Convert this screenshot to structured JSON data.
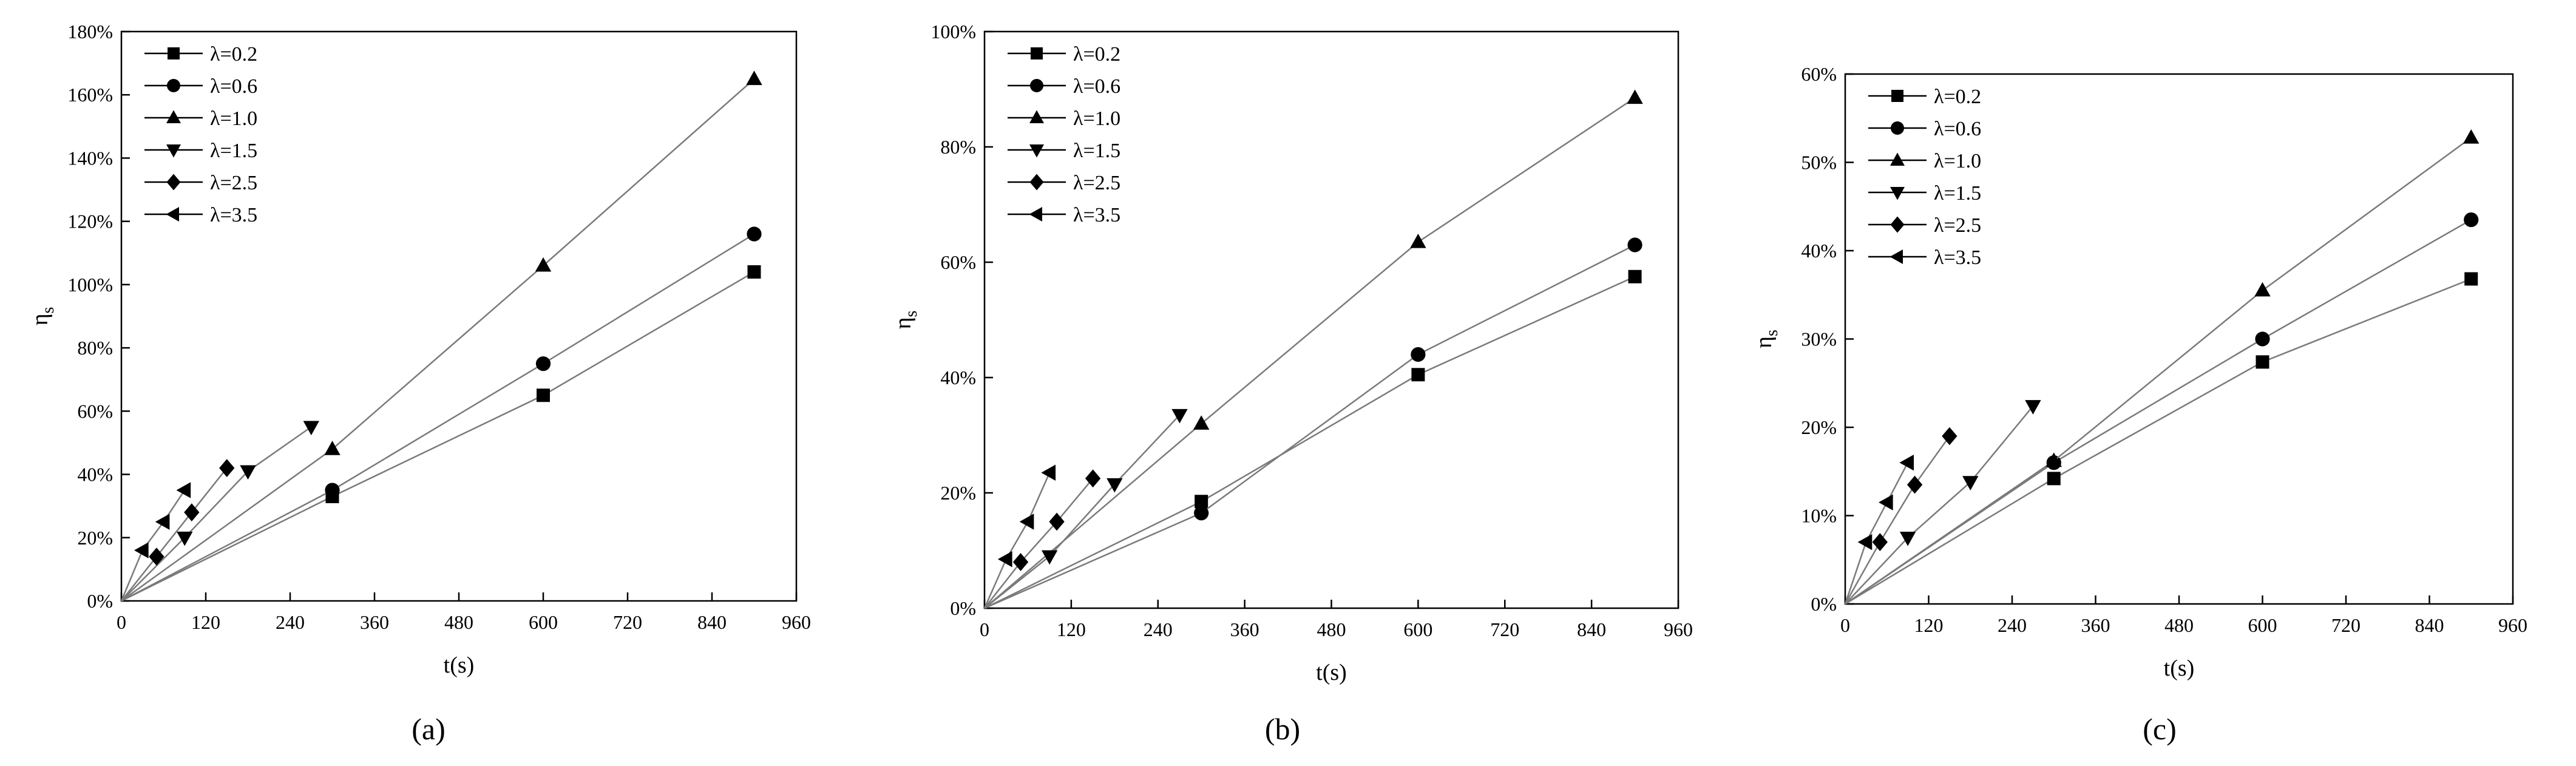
{
  "figure": {
    "panel_labels": [
      "(a)",
      "(b)",
      "(c)"
    ]
  },
  "chart_data": [
    {
      "type": "line",
      "panel": "(a)",
      "xlabel": "t(s)",
      "ylabel": "ηs",
      "ylabel_main": "η",
      "ylabel_sub": "s",
      "xlim": [
        0,
        960
      ],
      "ylim": [
        0,
        180
      ],
      "xticks": [
        0,
        120,
        240,
        360,
        480,
        600,
        720,
        840,
        960
      ],
      "yticks": [
        0,
        20,
        40,
        60,
        80,
        100,
        120,
        140,
        160,
        180
      ],
      "ytick_suffix": "%",
      "legend_position": "top-left",
      "series": [
        {
          "name": "λ=0.2",
          "marker": "square",
          "x": [
            0,
            300,
            600,
            900
          ],
          "y": [
            0,
            33,
            65,
            104
          ]
        },
        {
          "name": "λ=0.6",
          "marker": "circle",
          "x": [
            0,
            300,
            600,
            900
          ],
          "y": [
            0,
            35,
            75,
            116
          ]
        },
        {
          "name": "λ=1.0",
          "marker": "triangle-up",
          "x": [
            0,
            300,
            600,
            900
          ],
          "y": [
            0,
            48,
            106,
            165
          ]
        },
        {
          "name": "λ=1.5",
          "marker": "triangle-down",
          "x": [
            0,
            90,
            180,
            270
          ],
          "y": [
            0,
            20,
            41,
            55
          ]
        },
        {
          "name": "λ=2.5",
          "marker": "diamond",
          "x": [
            0,
            50,
            100,
            150
          ],
          "y": [
            0,
            14,
            28,
            42
          ]
        },
        {
          "name": "λ=3.5",
          "marker": "triangle-left",
          "x": [
            0,
            30,
            60,
            90
          ],
          "y": [
            0,
            16,
            25,
            35
          ]
        }
      ]
    },
    {
      "type": "line",
      "panel": "(b)",
      "xlabel": "t(s)",
      "ylabel": "ηs",
      "ylabel_main": "η",
      "ylabel_sub": "s",
      "xlim": [
        0,
        960
      ],
      "ylim": [
        0,
        100
      ],
      "xticks": [
        0,
        120,
        240,
        360,
        480,
        600,
        720,
        840,
        960
      ],
      "yticks": [
        0,
        20,
        40,
        60,
        80,
        100
      ],
      "ytick_suffix": "%",
      "legend_position": "top-left",
      "series": [
        {
          "name": "λ=0.2",
          "marker": "square",
          "x": [
            0,
            300,
            600,
            900
          ],
          "y": [
            0,
            18.5,
            40.5,
            57.5
          ]
        },
        {
          "name": "λ=0.6",
          "marker": "circle",
          "x": [
            0,
            300,
            600,
            900
          ],
          "y": [
            0,
            16.5,
            44,
            63
          ]
        },
        {
          "name": "λ=1.0",
          "marker": "triangle-up",
          "x": [
            0,
            300,
            600,
            900
          ],
          "y": [
            0,
            32,
            63.5,
            88.5
          ]
        },
        {
          "name": "λ=1.5",
          "marker": "triangle-down",
          "x": [
            0,
            90,
            180,
            270
          ],
          "y": [
            0,
            9,
            21.5,
            33.5
          ]
        },
        {
          "name": "λ=2.5",
          "marker": "diamond",
          "x": [
            0,
            50,
            100,
            150
          ],
          "y": [
            0,
            8,
            15,
            22.5
          ]
        },
        {
          "name": "λ=3.5",
          "marker": "triangle-left",
          "x": [
            0,
            30,
            60,
            90
          ],
          "y": [
            0,
            8.5,
            15,
            23.5
          ]
        }
      ]
    },
    {
      "type": "line",
      "panel": "(c)",
      "xlabel": "t(s)",
      "ylabel": "ηs",
      "ylabel_main": "η",
      "ylabel_sub": "s",
      "xlim": [
        0,
        960
      ],
      "ylim": [
        0,
        60
      ],
      "xticks": [
        0,
        120,
        240,
        360,
        480,
        600,
        720,
        840,
        960
      ],
      "yticks": [
        0,
        10,
        20,
        30,
        40,
        50,
        60
      ],
      "ytick_suffix": "%",
      "legend_position": "top-left",
      "series": [
        {
          "name": "λ=0.2",
          "marker": "square",
          "x": [
            0,
            300,
            600,
            900
          ],
          "y": [
            0,
            14.2,
            27.4,
            36.8
          ]
        },
        {
          "name": "λ=0.6",
          "marker": "circle",
          "x": [
            0,
            300,
            600,
            900
          ],
          "y": [
            0,
            16,
            30,
            43.5
          ]
        },
        {
          "name": "λ=1.0",
          "marker": "triangle-up",
          "x": [
            0,
            300,
            600,
            900
          ],
          "y": [
            0,
            16.2,
            35.5,
            52.8
          ]
        },
        {
          "name": "λ=1.5",
          "marker": "triangle-down",
          "x": [
            0,
            90,
            180,
            270
          ],
          "y": [
            0,
            7.5,
            13.8,
            22.4
          ]
        },
        {
          "name": "λ=2.5",
          "marker": "diamond",
          "x": [
            0,
            50,
            100,
            150
          ],
          "y": [
            0,
            7,
            13.5,
            19
          ]
        },
        {
          "name": "λ=3.5",
          "marker": "triangle-left",
          "x": [
            0,
            30,
            60,
            90
          ],
          "y": [
            0,
            7,
            11.5,
            16
          ]
        }
      ]
    }
  ]
}
